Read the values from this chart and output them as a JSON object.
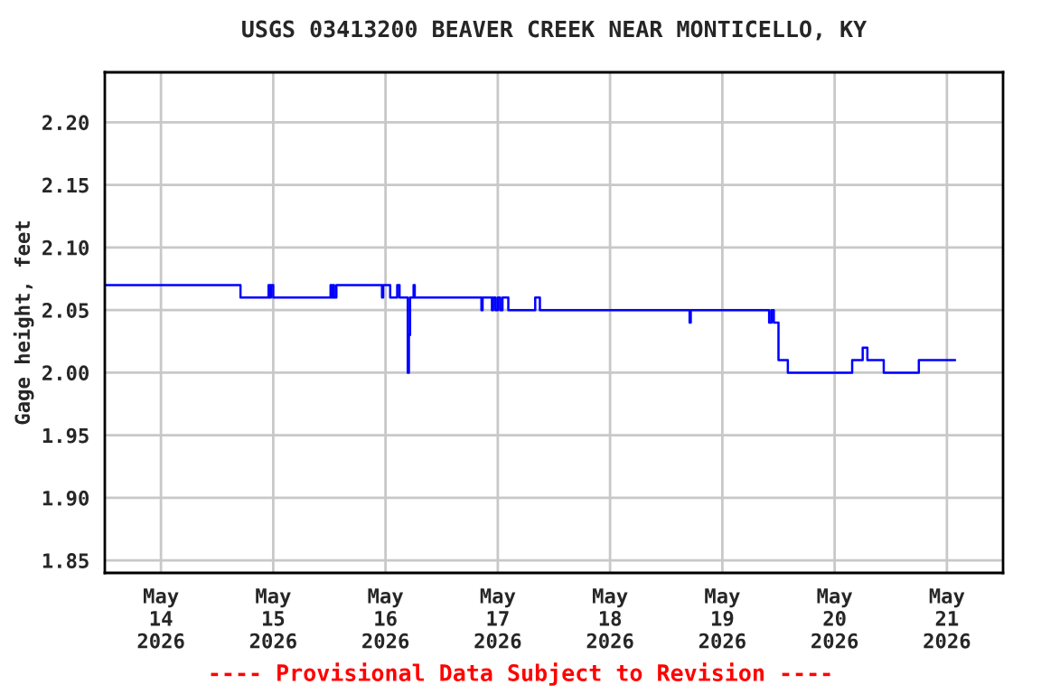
{
  "chart_data": {
    "type": "step",
    "title": "USGS 03413200 BEAVER CREEK NEAR MONTICELLO, KY",
    "ylabel": "Gage height, feet",
    "annotations": [
      "---- Provisional Data Subject to Revision ----"
    ],
    "grid": true,
    "legend": false,
    "marker": "none",
    "line_style": "solid",
    "xlim": [
      "2026-05-13T12:00",
      "2026-05-21T12:00"
    ],
    "xticks": [
      {
        "value": "2026-05-14",
        "label": "May\n14\n2026"
      },
      {
        "value": "2026-05-15",
        "label": "May\n15\n2026"
      },
      {
        "value": "2026-05-16",
        "label": "May\n16\n2026"
      },
      {
        "value": "2026-05-17",
        "label": "May\n17\n2026"
      },
      {
        "value": "2026-05-18",
        "label": "May\n18\n2026"
      },
      {
        "value": "2026-05-19",
        "label": "May\n19\n2026"
      },
      {
        "value": "2026-05-20",
        "label": "May\n20\n2026"
      },
      {
        "value": "2026-05-21",
        "label": "May\n21\n2026"
      }
    ],
    "ylim": [
      1.84,
      2.24
    ],
    "yticks": [
      {
        "value": 1.85,
        "label": "1.85"
      },
      {
        "value": 1.9,
        "label": "1.90"
      },
      {
        "value": 1.95,
        "label": "1.95"
      },
      {
        "value": 2.0,
        "label": "2.00"
      },
      {
        "value": 2.05,
        "label": "2.05"
      },
      {
        "value": 2.1,
        "label": "2.10"
      },
      {
        "value": 2.15,
        "label": "2.15"
      },
      {
        "value": 2.2,
        "label": "2.20"
      }
    ],
    "series": [
      {
        "color": "#0000ff",
        "x": [
          "2026-05-13T12:00",
          "2026-05-14T17:00",
          "2026-05-14T23:00",
          "2026-05-14T23:15",
          "2026-05-14T23:30",
          "2026-05-15T00:00",
          "2026-05-15T12:15",
          "2026-05-15T12:30",
          "2026-05-15T12:45",
          "2026-05-15T13:00",
          "2026-05-15T13:30",
          "2026-05-15T23:15",
          "2026-05-15T23:30",
          "2026-05-16T01:00",
          "2026-05-16T02:30",
          "2026-05-16T03:00",
          "2026-05-16T04:45",
          "2026-05-16T05:00",
          "2026-05-16T05:15",
          "2026-05-16T06:00",
          "2026-05-16T06:15",
          "2026-05-16T20:30",
          "2026-05-16T20:45",
          "2026-05-16T22:45",
          "2026-05-16T23:00",
          "2026-05-16T23:30",
          "2026-05-17T00:00",
          "2026-05-17T00:30",
          "2026-05-17T01:00",
          "2026-05-17T02:15",
          "2026-05-17T08:00",
          "2026-05-17T09:00",
          "2026-05-18T17:00",
          "2026-05-18T17:15",
          "2026-05-19T10:00",
          "2026-05-19T10:30",
          "2026-05-19T11:00",
          "2026-05-19T12:00",
          "2026-05-19T14:00",
          "2026-05-20T03:45",
          "2026-05-20T06:00",
          "2026-05-20T07:00",
          "2026-05-20T10:30",
          "2026-05-20T18:00",
          "2026-05-21T01:45"
        ],
        "values": [
          2.07,
          2.06,
          2.07,
          2.06,
          2.07,
          2.06,
          2.07,
          2.06,
          2.07,
          2.06,
          2.07,
          2.06,
          2.07,
          2.06,
          2.07,
          2.06,
          2.0,
          2.03,
          2.06,
          2.07,
          2.06,
          2.05,
          2.06,
          2.05,
          2.06,
          2.05,
          2.06,
          2.05,
          2.06,
          2.05,
          2.06,
          2.05,
          2.04,
          2.05,
          2.04,
          2.05,
          2.04,
          2.01,
          2.0,
          2.01,
          2.02,
          2.01,
          2.0,
          2.01,
          2.01
        ]
      }
    ]
  }
}
